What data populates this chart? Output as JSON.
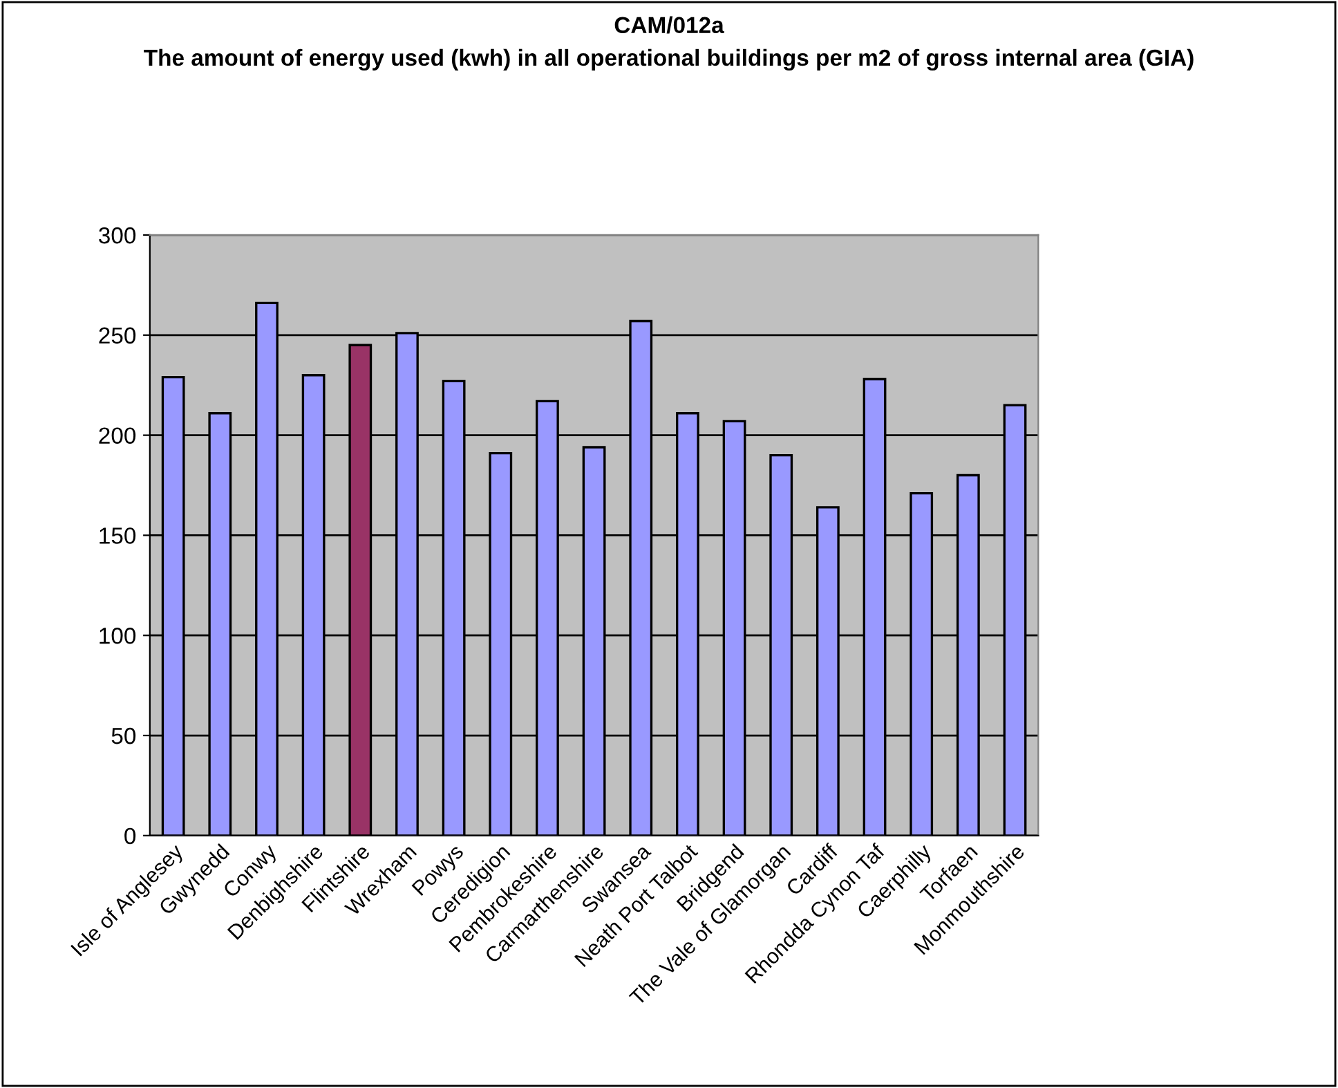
{
  "chart_data": {
    "type": "bar",
    "title": "CAM/012a",
    "subtitle": "The amount of energy used (kwh) in all operational buildings per m2 of gross internal area (GIA)",
    "categories": [
      "Isle of Anglesey",
      "Gwynedd",
      "Conwy",
      "Denbighshire",
      "Flintshire",
      "Wrexham",
      "Powys",
      "Ceredigion",
      "Pembrokeshire",
      "Carmarthenshire",
      "Swansea",
      "Neath Port Talbot",
      "Bridgend",
      "The Vale of Glamorgan",
      "Cardiff",
      "Rhondda Cynon Taf",
      "Caerphilly",
      "Torfaen",
      "Monmouthshire"
    ],
    "values": [
      229,
      211,
      266,
      230,
      245,
      251,
      227,
      191,
      217,
      194,
      257,
      211,
      207,
      190,
      164,
      228,
      171,
      180,
      215
    ],
    "colors": [
      "#9999ff",
      "#9999ff",
      "#9999ff",
      "#9999ff",
      "#993366",
      "#9999ff",
      "#9999ff",
      "#9999ff",
      "#9999ff",
      "#9999ff",
      "#9999ff",
      "#9999ff",
      "#9999ff",
      "#9999ff",
      "#9999ff",
      "#9999ff",
      "#9999ff",
      "#9999ff",
      "#9999ff"
    ],
    "ylim": [
      0,
      300
    ],
    "yticks": [
      0,
      50,
      100,
      150,
      200,
      250,
      300
    ],
    "grid": "y",
    "legend": false
  }
}
